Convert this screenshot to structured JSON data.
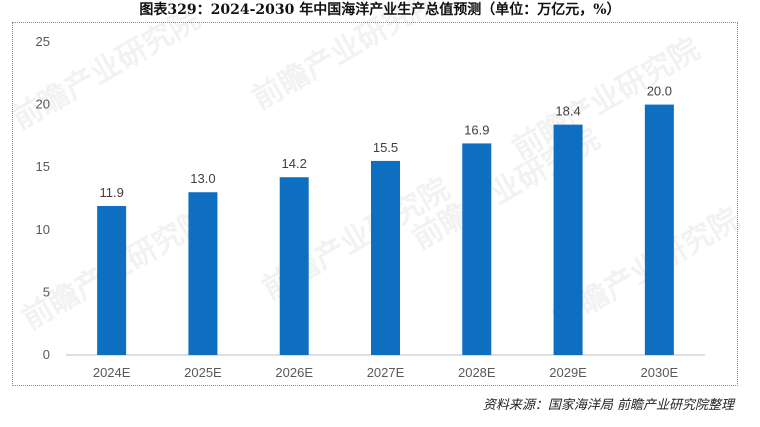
{
  "title": "图表329：2024-2030 年中国海洋产业生产总值预测（单位：万亿元，%）",
  "source": "资料来源：国家海洋局 前瞻产业研究院整理",
  "watermark": "前瞻产业研究院",
  "colors": {
    "bar": "#0e6ebf",
    "axis": "#bfbfbf"
  },
  "chart_data": {
    "type": "bar",
    "title": "图表329：2024-2030 年中国海洋产业生产总值预测（单位：万亿元，%）",
    "categories": [
      "2024E",
      "2025E",
      "2026E",
      "2027E",
      "2028E",
      "2029E",
      "2030E"
    ],
    "values": [
      11.9,
      13.0,
      14.2,
      15.5,
      16.9,
      18.4,
      20.0
    ],
    "value_labels": [
      "11.9",
      "13.0",
      "14.2",
      "15.5",
      "16.9",
      "18.4",
      "20.0"
    ],
    "ylim": [
      0,
      25
    ],
    "yticks": [
      0,
      5,
      10,
      15,
      20,
      25
    ],
    "xlabel": "",
    "ylabel": "",
    "grid": false,
    "legend": "none"
  }
}
